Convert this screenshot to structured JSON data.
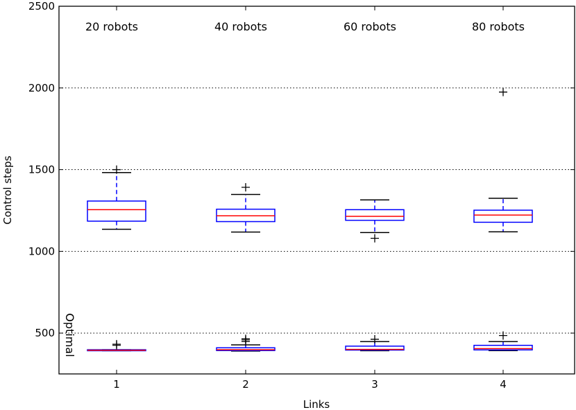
{
  "chart_data": {
    "type": "box",
    "xlabel": "Links",
    "ylabel": "Control steps",
    "ylim": [
      250,
      2500
    ],
    "yticks": [
      500,
      1000,
      1500,
      2000,
      2500
    ],
    "grid": "horizontal-dotted",
    "categories": [
      "1",
      "2",
      "3",
      "4"
    ],
    "top_annotations": [
      "20 robots",
      "40 robots",
      "60 robots",
      "80 robots"
    ],
    "side_annotation": "Optimal",
    "colors": {
      "box": "#0000ff",
      "median": "#ff0000",
      "whisker_cap": "#000000",
      "grid": "#000000"
    },
    "series": [
      {
        "name": "",
        "boxes": [
          {
            "q1": 1185,
            "median": 1255,
            "q3": 1308,
            "whislo": 1135,
            "whishi": 1482,
            "fliers": [
              1500
            ]
          },
          {
            "q1": 1182,
            "median": 1218,
            "q3": 1258,
            "whislo": 1118,
            "whishi": 1348,
            "fliers": [
              1392
            ]
          },
          {
            "q1": 1190,
            "median": 1215,
            "q3": 1255,
            "whislo": 1115,
            "whishi": 1315,
            "fliers": [
              1080
            ]
          },
          {
            "q1": 1178,
            "median": 1222,
            "q3": 1252,
            "whislo": 1120,
            "whishi": 1325,
            "fliers": [
              1975
            ]
          }
        ]
      },
      {
        "name": "",
        "boxes": [
          {
            "q1": 392,
            "median": 395,
            "q3": 398,
            "whislo": 392,
            "whishi": 398,
            "fliers": [
              425,
              432
            ]
          },
          {
            "q1": 393,
            "median": 398,
            "q3": 410,
            "whislo": 390,
            "whishi": 428,
            "fliers": [
              448,
              458,
              465
            ]
          },
          {
            "q1": 396,
            "median": 400,
            "q3": 420,
            "whislo": 392,
            "whishi": 448,
            "fliers": [
              462
            ]
          },
          {
            "q1": 397,
            "median": 405,
            "q3": 425,
            "whislo": 393,
            "whishi": 448,
            "fliers": [
              485
            ]
          }
        ]
      }
    ]
  }
}
